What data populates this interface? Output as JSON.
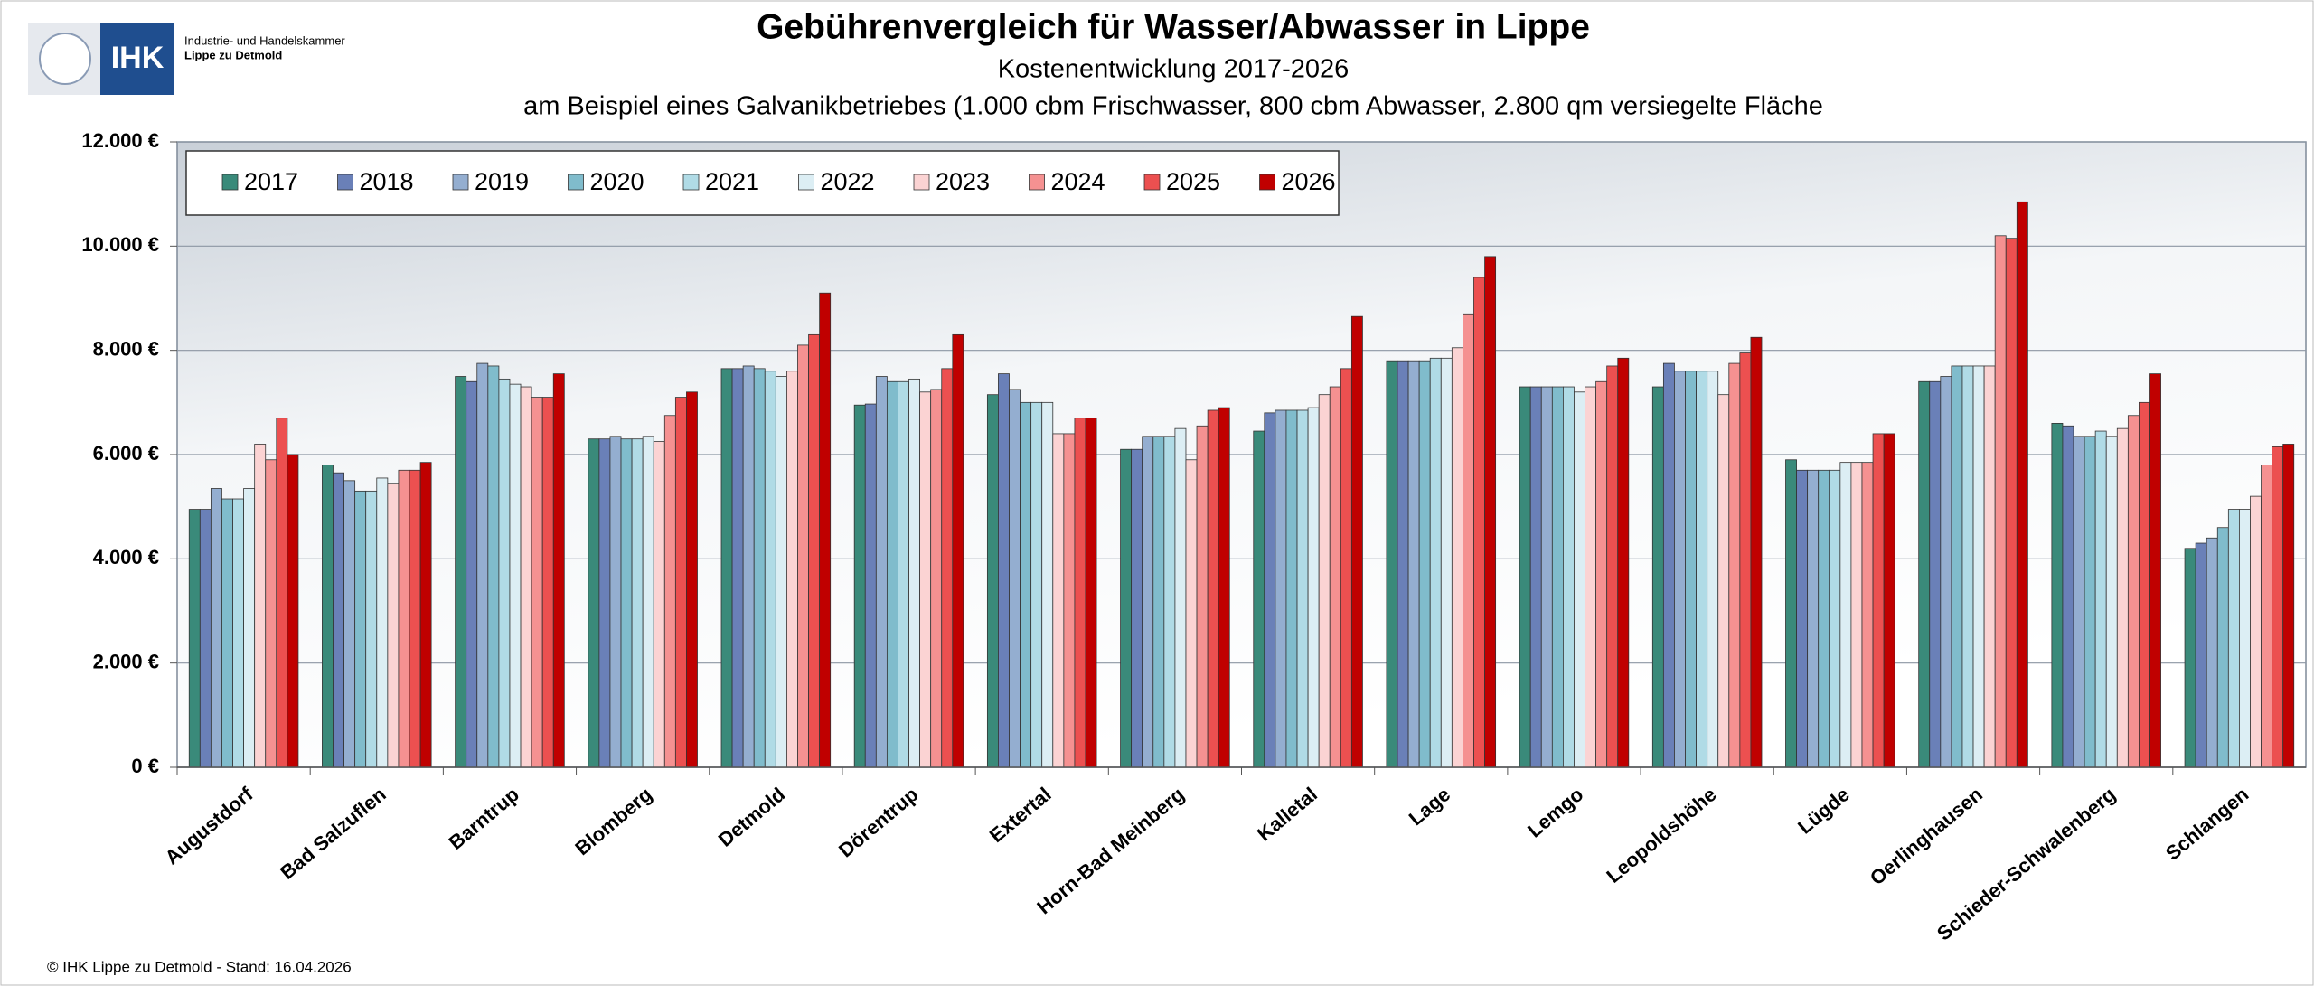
{
  "header": {
    "logo_text": "IHK",
    "org_line1": "Industrie- und Handelskammer",
    "org_line2": "Lippe zu Detmold"
  },
  "chart_data": {
    "type": "bar",
    "title": "Gebührenvergleich für Wasser/Abwasser in Lippe",
    "subtitle": "Kostenentwicklung 2017-2026",
    "subtitle2": "am Beispiel eines Galvanikbetriebes (1.000 cbm Frischwasser, 800 cbm Abwasser, 2.800 qm versiegelte Fläche",
    "categories": [
      "Augustdorf",
      "Bad Salzuflen",
      "Barntrup",
      "Blomberg",
      "Detmold",
      "Dörentrup",
      "Extertal",
      "Horn-Bad Meinberg",
      "Kalletal",
      "Lage",
      "Lemgo",
      "Leopoldshöhe",
      "Lügde",
      "Oerlinghausen",
      "Schieder-Schwalenberg",
      "Schlangen"
    ],
    "series": [
      {
        "name": "2017",
        "color": "#3a8a7a",
        "values": [
          4950,
          5800,
          7500,
          6300,
          7650,
          6950,
          7150,
          6100,
          6450,
          7800,
          7300,
          7300,
          5900,
          7400,
          6600,
          4200
        ]
      },
      {
        "name": "2018",
        "color": "#6a80b8",
        "values": [
          4950,
          5650,
          7400,
          6300,
          7650,
          6970,
          7550,
          6100,
          6800,
          7800,
          7300,
          7750,
          5700,
          7400,
          6550,
          4300
        ]
      },
      {
        "name": "2019",
        "color": "#94aed0",
        "values": [
          5350,
          5500,
          7750,
          6350,
          7700,
          7500,
          7250,
          6350,
          6850,
          7800,
          7300,
          7600,
          5700,
          7500,
          6350,
          4400
        ]
      },
      {
        "name": "2020",
        "color": "#80bccc",
        "values": [
          5150,
          5300,
          7700,
          6300,
          7650,
          7400,
          7000,
          6350,
          6850,
          7800,
          7300,
          7600,
          5700,
          7700,
          6350,
          4600
        ]
      },
      {
        "name": "2021",
        "color": "#b0dbe6",
        "values": [
          5150,
          5300,
          7450,
          6300,
          7600,
          7400,
          7000,
          6350,
          6850,
          7850,
          7300,
          7600,
          5700,
          7700,
          6450,
          4950
        ]
      },
      {
        "name": "2022",
        "color": "#dceef4",
        "values": [
          5350,
          5550,
          7350,
          6350,
          7500,
          7450,
          7000,
          6500,
          6900,
          7850,
          7200,
          7600,
          5850,
          7700,
          6350,
          4950
        ]
      },
      {
        "name": "2023",
        "color": "#fbd3d3",
        "values": [
          6200,
          5450,
          7300,
          6250,
          7600,
          7200,
          6400,
          5900,
          7150,
          8050,
          7300,
          7150,
          5850,
          7700,
          6500,
          5200
        ]
      },
      {
        "name": "2024",
        "color": "#f59191",
        "values": [
          5900,
          5700,
          7100,
          6750,
          8100,
          7250,
          6400,
          6550,
          7300,
          8700,
          7400,
          7750,
          5850,
          10200,
          6750,
          5800
        ]
      },
      {
        "name": "2025",
        "color": "#ec5050",
        "values": [
          6700,
          5700,
          7100,
          7100,
          8300,
          7650,
          6700,
          6850,
          7650,
          9400,
          7700,
          7950,
          6400,
          10150,
          7000,
          6150
        ]
      },
      {
        "name": "2026",
        "color": "#c00000",
        "values": [
          6000,
          5850,
          7550,
          7200,
          9100,
          8300,
          6700,
          6900,
          8650,
          9800,
          7850,
          8250,
          6400,
          10850,
          7550,
          6200
        ]
      }
    ],
    "ylim": [
      0,
      12000
    ],
    "yticks": [
      {
        "value": 0,
        "label": "0 €"
      },
      {
        "value": 2000,
        "label": "2.000 €"
      },
      {
        "value": 4000,
        "label": "4.000 €"
      },
      {
        "value": 6000,
        "label": "6.000 €"
      },
      {
        "value": 8000,
        "label": "8.000 €"
      },
      {
        "value": 10000,
        "label": "10.000 €"
      },
      {
        "value": 12000,
        "label": "12.000 €"
      }
    ],
    "grid": true,
    "legend": "top-left"
  },
  "footer": "© IHK Lippe zu Detmold - Stand: 16.04.2026"
}
